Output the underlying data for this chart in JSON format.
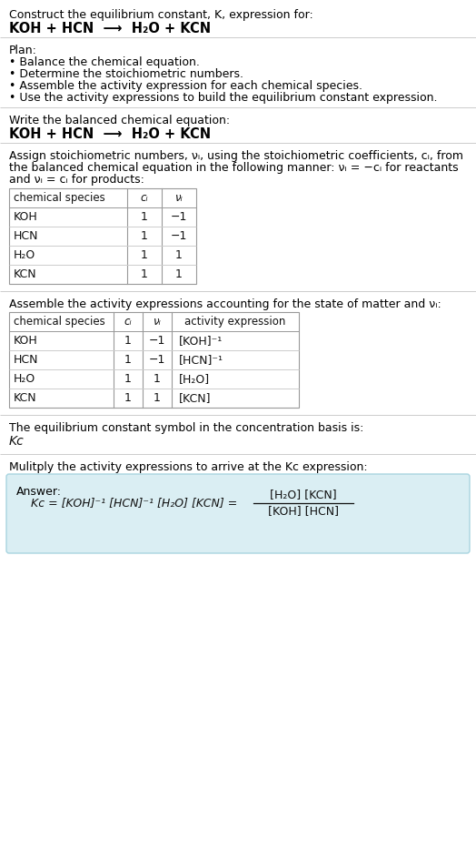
{
  "bg_color": "#ffffff",
  "title_line1": "Construct the equilibrium constant, K, expression for:",
  "title_line2": "KOH + HCN  ⟶  H₂O + KCN",
  "plan_header": "Plan:",
  "plan_bullets": [
    "• Balance the chemical equation.",
    "• Determine the stoichiometric numbers.",
    "• Assemble the activity expression for each chemical species.",
    "• Use the activity expressions to build the equilibrium constant expression."
  ],
  "balanced_header": "Write the balanced chemical equation:",
  "balanced_eq": "KOH + HCN  ⟶  H₂O + KCN",
  "stoich_intro1": "Assign stoichiometric numbers, νᵢ, using the stoichiometric coefficients, cᵢ, from",
  "stoich_intro2": "the balanced chemical equation in the following manner: νᵢ = −cᵢ for reactants",
  "stoich_intro3": "and νᵢ = cᵢ for products:",
  "table1_headers": [
    "chemical species",
    "cᵢ",
    "νᵢ"
  ],
  "table1_rows": [
    [
      "KOH",
      "1",
      "−1"
    ],
    [
      "HCN",
      "1",
      "−1"
    ],
    [
      "H₂O",
      "1",
      "1"
    ],
    [
      "KCN",
      "1",
      "1"
    ]
  ],
  "activity_intro": "Assemble the activity expressions accounting for the state of matter and νᵢ:",
  "table2_headers": [
    "chemical species",
    "cᵢ",
    "νᵢ",
    "activity expression"
  ],
  "table2_rows": [
    [
      "KOH",
      "1",
      "−1",
      "[KOH]⁻¹"
    ],
    [
      "HCN",
      "1",
      "−1",
      "[HCN]⁻¹"
    ],
    [
      "H₂O",
      "1",
      "1",
      "[H₂O]"
    ],
    [
      "KCN",
      "1",
      "1",
      "[KCN]"
    ]
  ],
  "conc_basis": "The equilibrium constant symbol in the concentration basis is:",
  "kc_symbol": "Kᴄ",
  "multiply_text": "Mulitply the activity expressions to arrive at the Kᴄ expression:",
  "answer_box_color": "#daeef3",
  "answer_border_color": "#a8d4e0",
  "answer_label": "Answer:",
  "ans_left": "Kᴄ = [KOH]⁻¹ [HCN]⁻¹ [H₂O] [KCN] =",
  "ans_num": "[H₂O] [KCN]",
  "ans_den": "[KOH] [HCN]",
  "divider_color": "#cccccc",
  "table_border_color": "#999999",
  "table_inner_color": "#cccccc"
}
